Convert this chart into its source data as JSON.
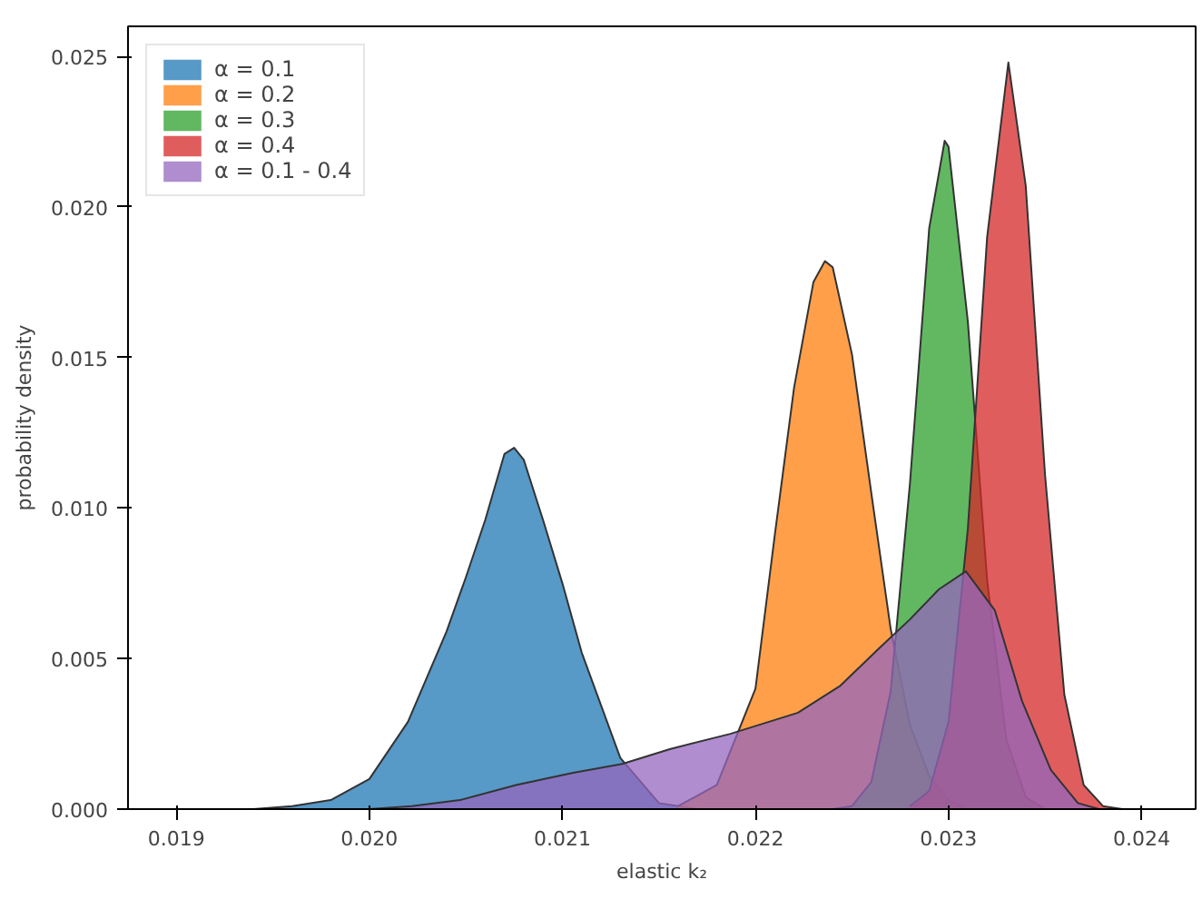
{
  "chart_data": {
    "type": "area",
    "xlabel": "elastic k₂",
    "ylabel": "probability density",
    "xlim": [
      0.01875,
      0.02428
    ],
    "ylim": [
      0,
      0.026
    ],
    "xticks": [
      {
        "value": 0.019,
        "label": "0.019"
      },
      {
        "value": 0.02,
        "label": "0.020"
      },
      {
        "value": 0.021,
        "label": "0.021"
      },
      {
        "value": 0.022,
        "label": "0.022"
      },
      {
        "value": 0.023,
        "label": "0.023"
      },
      {
        "value": 0.024,
        "label": "0.024"
      }
    ],
    "yticks": [
      {
        "value": 0,
        "label": "0.000"
      },
      {
        "value": 0.005,
        "label": "0.005"
      },
      {
        "value": 0.01,
        "label": "0.010"
      },
      {
        "value": 0.015,
        "label": "0.015"
      },
      {
        "value": 0.02,
        "label": "0.020"
      },
      {
        "value": 0.025,
        "label": "0.025"
      }
    ],
    "legend": "top left",
    "grid": false,
    "series": [
      {
        "name": "α = 0.1",
        "color": "#1f77b4",
        "x": [
          0.0194,
          0.0196,
          0.0198,
          0.02,
          0.0202,
          0.0204,
          0.0205,
          0.0206,
          0.0207,
          0.02075,
          0.0208,
          0.0209,
          0.021,
          0.0211,
          0.0213,
          0.0215,
          0.0217
        ],
        "values": [
          0,
          0.0001,
          0.0003,
          0.001,
          0.0029,
          0.0059,
          0.0077,
          0.0096,
          0.0118,
          0.012,
          0.0116,
          0.0096,
          0.0075,
          0.0052,
          0.0017,
          0.0002,
          0
        ]
      },
      {
        "name": "α = 0.2",
        "color": "#ff7f0e",
        "x": [
          0.0216,
          0.0218,
          0.022,
          0.0221,
          0.0222,
          0.0223,
          0.02236,
          0.0224,
          0.0225,
          0.0226,
          0.0227,
          0.0228,
          0.0229,
          0.023,
          0.0231
        ],
        "values": [
          0.0001,
          0.0008,
          0.004,
          0.0091,
          0.014,
          0.0175,
          0.0182,
          0.018,
          0.0151,
          0.0105,
          0.006,
          0.0028,
          0.0011,
          0.0003,
          0
        ]
      },
      {
        "name": "α = 0.3",
        "color": "#2ca02c",
        "x": [
          0.0224,
          0.0225,
          0.0226,
          0.0227,
          0.0228,
          0.0229,
          0.02298,
          0.023,
          0.0231,
          0.0232,
          0.0233,
          0.0234,
          0.0235
        ],
        "values": [
          0,
          0.0001,
          0.0009,
          0.0039,
          0.0108,
          0.0193,
          0.0222,
          0.022,
          0.0162,
          0.0076,
          0.0023,
          0.0004,
          0
        ]
      },
      {
        "name": "α = 0.4",
        "color": "#d62728",
        "x": [
          0.0228,
          0.0229,
          0.023,
          0.0231,
          0.0232,
          0.02331,
          0.0234,
          0.0235,
          0.0236,
          0.0237,
          0.0238,
          0.0239
        ],
        "values": [
          0.0001,
          0.0006,
          0.0029,
          0.0093,
          0.019,
          0.0248,
          0.0207,
          0.0111,
          0.0038,
          0.0008,
          0.0001,
          0
        ]
      },
      {
        "name": "α = 0.1 - 0.4",
        "color": "#9467bd",
        "x": [
          0.02,
          0.02022,
          0.02047,
          0.02076,
          0.02105,
          0.02131,
          0.02156,
          0.02187,
          0.02222,
          0.02244,
          0.02265,
          0.0228,
          0.02295,
          0.02309,
          0.02324,
          0.02338,
          0.02353,
          0.02367,
          0.02378
        ],
        "values": [
          0,
          0.0001,
          0.0003,
          0.0008,
          0.0012,
          0.0015,
          0.002,
          0.0025,
          0.0032,
          0.0041,
          0.0054,
          0.0063,
          0.0073,
          0.0079,
          0.0066,
          0.0036,
          0.0013,
          0.0002,
          0
        ]
      }
    ]
  }
}
